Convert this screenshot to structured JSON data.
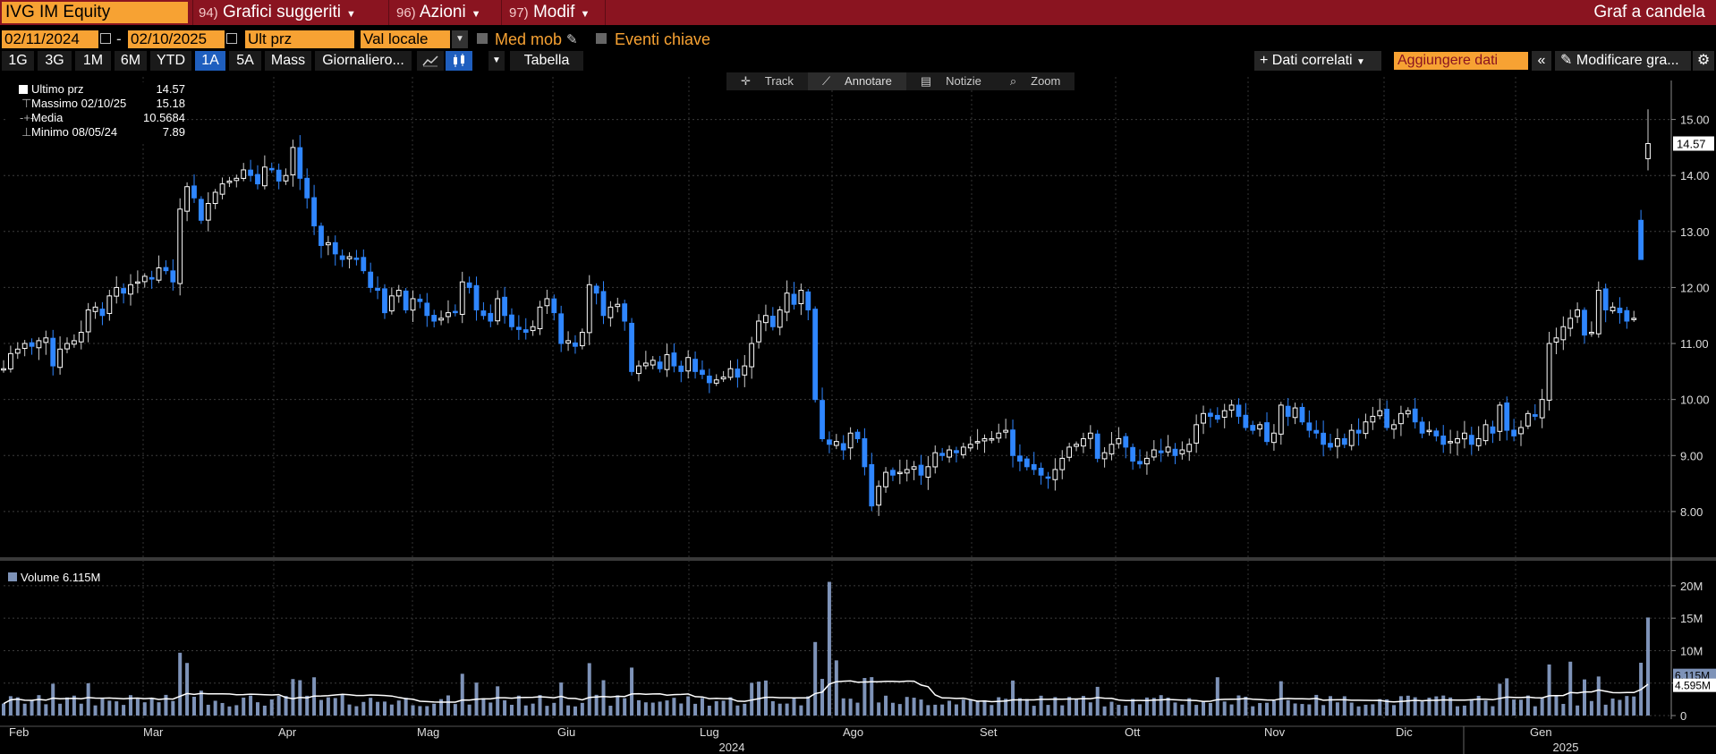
{
  "header": {
    "ticker": "IVG IM Equity",
    "menus": [
      {
        "num": "94)",
        "label": "Grafici suggeriti"
      },
      {
        "num": "96)",
        "label": "Azioni"
      },
      {
        "num": "97)",
        "label": "Modif"
      }
    ],
    "chart_type": "Graf a candela"
  },
  "controls": {
    "start_date": "02/11/2024",
    "end_date": "02/10/2025",
    "field": "Ult prz",
    "currency": "Val locale",
    "moving_avg": "Med mob",
    "key_events": "Eventi chiave"
  },
  "periods": [
    "1G",
    "3G",
    "1M",
    "6M",
    "YTD",
    "1A",
    "5A",
    "Mass"
  ],
  "active_period": "1A",
  "frequency": "Giornaliero...",
  "table_label": "Tabella",
  "related_data": "+ Dati correlati",
  "add_data": "Aggiungere dati",
  "edit_chart": "Modificare gra...",
  "tools": [
    "Track",
    "Annotare",
    "Notizie",
    "Zoom"
  ],
  "legend": [
    {
      "label": "Ultimo prz",
      "value": "14.57"
    },
    {
      "label": "Massimo 02/10/25",
      "value": "15.18"
    },
    {
      "label": "Media",
      "value": "10.5684"
    },
    {
      "label": "Minimo 08/05/24",
      "value": "7.89"
    }
  ],
  "volume_legend": "Volume 6.115M",
  "colors": {
    "up": "#ffffff",
    "down": "#2f86ff",
    "panel": "#8a1420",
    "accent": "#f7a233"
  },
  "chart_data": {
    "type": "candlestick",
    "price_ticks": [
      "8.00",
      "9.00",
      "10.00",
      "11.00",
      "12.00",
      "13.00",
      "14.00",
      "15.00"
    ],
    "last_price_tag": "14.57",
    "volume_ticks": [
      "0",
      "5M",
      "10M",
      "15M",
      "20M"
    ],
    "volume_tags": [
      "6.115M",
      "4.595M"
    ],
    "months": [
      "Feb",
      "Mar",
      "Apr",
      "Mag",
      "Giu",
      "Lug",
      "Ago",
      "Set",
      "Ott",
      "Nov",
      "Dic",
      "Gen"
    ],
    "years": [
      "2024",
      "2025"
    ],
    "closes": [
      10.55,
      10.82,
      10.9,
      11.0,
      10.95,
      11.05,
      11.1,
      10.6,
      10.9,
      11.0,
      11.05,
      11.2,
      11.6,
      11.65,
      11.5,
      11.85,
      12.0,
      11.9,
      12.05,
      12.1,
      12.2,
      12.15,
      12.35,
      12.3,
      12.1,
      13.4,
      13.8,
      13.6,
      13.2,
      13.5,
      13.7,
      13.85,
      13.9,
      13.95,
      14.1,
      14.0,
      13.85,
      14.15,
      14.1,
      13.9,
      14.0,
      14.5,
      13.95,
      13.6,
      13.1,
      12.75,
      12.8,
      12.6,
      12.5,
      12.55,
      12.5,
      12.3,
      12.0,
      11.95,
      11.55,
      11.85,
      11.95,
      11.6,
      11.8,
      11.75,
      11.5,
      11.4,
      11.45,
      11.55,
      11.55,
      12.1,
      12.0,
      11.6,
      11.5,
      11.4,
      11.8,
      11.5,
      11.3,
      11.25,
      11.2,
      11.3,
      11.65,
      11.8,
      11.55,
      11.0,
      11.05,
      10.95,
      11.2,
      12.05,
      11.9,
      11.5,
      11.65,
      11.7,
      11.4,
      10.5,
      10.6,
      10.65,
      10.7,
      10.55,
      10.8,
      10.6,
      10.5,
      10.75,
      10.5,
      10.45,
      10.3,
      10.35,
      10.4,
      10.55,
      10.4,
      10.6,
      11.0,
      11.4,
      11.5,
      11.3,
      11.6,
      11.9,
      11.7,
      11.95,
      11.6,
      10.0,
      9.3,
      9.2,
      9.25,
      9.1,
      9.4,
      9.3,
      8.8,
      8.1,
      8.45,
      8.7,
      8.65,
      8.7,
      8.75,
      8.8,
      8.65,
      8.8,
      9.05,
      9.0,
      9.1,
      9.05,
      9.15,
      9.2,
      9.25,
      9.3,
      9.3,
      9.4,
      9.45,
      9.0,
      8.9,
      8.8,
      8.75,
      8.65,
      8.6,
      8.75,
      8.95,
      9.15,
      9.2,
      9.3,
      9.4,
      8.95,
      9.05,
      9.2,
      9.3,
      9.15,
      8.9,
      8.85,
      8.95,
      9.1,
      9.05,
      9.15,
      9.0,
      9.1,
      9.2,
      9.55,
      9.75,
      9.7,
      9.65,
      9.8,
      9.9,
      9.7,
      9.5,
      9.45,
      9.55,
      9.25,
      9.4,
      9.9,
      9.7,
      9.85,
      9.6,
      9.45,
      9.4,
      9.2,
      9.15,
      9.3,
      9.2,
      9.45,
      9.4,
      9.6,
      9.7,
      9.8,
      9.5,
      9.55,
      9.75,
      9.8,
      9.6,
      9.4,
      9.45,
      9.35,
      9.2,
      9.25,
      9.3,
      9.4,
      9.2,
      9.3,
      9.55,
      9.4,
      9.9,
      9.45,
      9.35,
      9.5,
      9.75,
      9.7,
      10.0,
      11.0,
      11.1,
      11.3,
      11.45,
      11.6,
      11.15,
      11.2,
      11.95,
      11.6,
      11.65,
      11.55,
      11.4,
      11.45,
      12.5,
      14.57
    ]
  }
}
